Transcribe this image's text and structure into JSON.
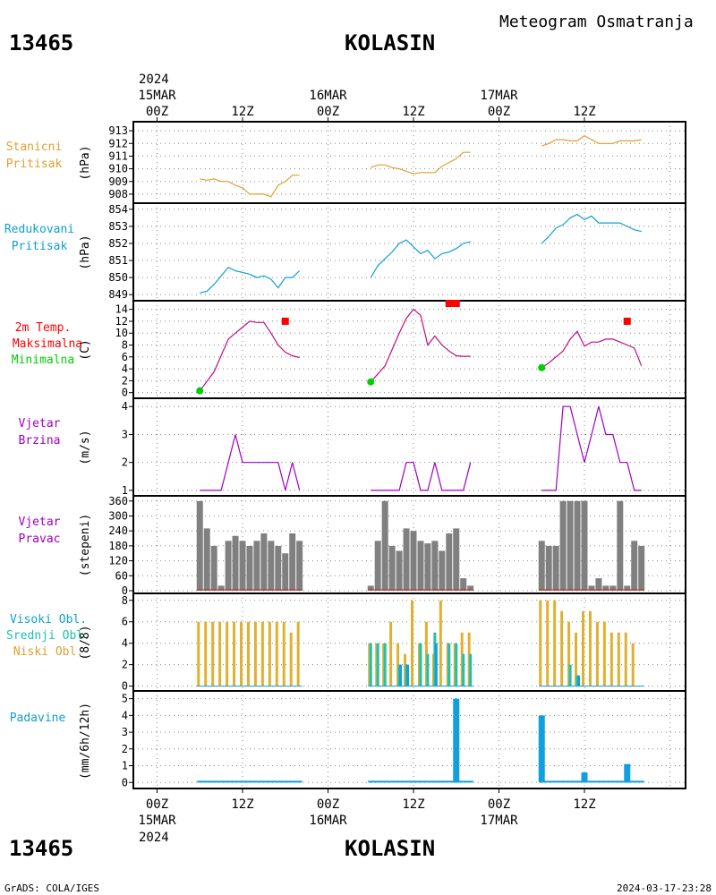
{
  "header": {
    "station_id": "13465",
    "station_name": "KOLASIN",
    "subtitle": "Meteogram Osmatranja",
    "footer_left": "GrADS: COLA/IGES",
    "footer_right": "2024-03-17-23:28"
  },
  "time_axis": {
    "top_year": "2024",
    "bottom_year": "2024",
    "dates": [
      "15MAR",
      "16MAR",
      "17MAR"
    ],
    "hour_ticks": [
      "00Z",
      "12Z",
      "00Z",
      "12Z",
      "00Z",
      "12Z"
    ]
  },
  "colors": {
    "pressure": "#e0a030",
    "reduced_pressure": "#10a0d0",
    "temperature": "#c0107a",
    "max_temp": "#ff0000",
    "min_temp": "#00d000",
    "wind": "#a000c0",
    "wind_dir": "#808080",
    "cloud_low": "#e0b030",
    "cloud_mid": "#20c0b0",
    "cloud_high": "#10a0e0",
    "precip": "#10a0e0"
  },
  "panels": {
    "p1": {
      "label1": "Stanicni",
      "label2": "Pritisak",
      "unit": "(hPa)"
    },
    "p2": {
      "label1": "Redukovani",
      "label2": "Pritisak",
      "unit": "(hPa)"
    },
    "p3": {
      "label1": "2m Temp.",
      "label2": "Maksimalna",
      "label3": "Minimalna",
      "unit": "(C)"
    },
    "p4": {
      "label1": "Vjetar",
      "label2": "Brzina",
      "unit": "(m/s)"
    },
    "p5": {
      "label1": "Vjetar",
      "label2": "Pravac",
      "unit": "(stepeni)"
    },
    "p6": {
      "label1": "Visoki Obl.",
      "label2": "Srednji Obl.",
      "label3": "Niski Obl.",
      "unit": "(8/8)"
    },
    "p7": {
      "label1": "Padavine",
      "unit": "(mm/6h/12h)"
    }
  },
  "chart_data": [
    {
      "type": "line",
      "name": "station_pressure",
      "ylabel": "(hPa)",
      "ylim": [
        907.5,
        913.5
      ],
      "yticks": [
        908,
        909,
        910,
        911,
        912,
        913
      ],
      "x_unit": "hours since 15MAR 00Z",
      "segments": [
        {
          "x": [
            6,
            7,
            8,
            9,
            10,
            11,
            12,
            13,
            14,
            15,
            16,
            17,
            18,
            19,
            20
          ],
          "y": [
            909.2,
            909.1,
            909.2,
            909.0,
            909.0,
            908.7,
            908.5,
            908.0,
            908.0,
            908.0,
            907.8,
            908.7,
            909.0,
            909.5,
            909.5
          ]
        },
        {
          "x": [
            30,
            31,
            32,
            33,
            34,
            35,
            36,
            37,
            38,
            39,
            40,
            41,
            42,
            43,
            44
          ],
          "y": [
            910.1,
            910.3,
            910.3,
            910.1,
            910.0,
            909.8,
            909.6,
            909.7,
            909.7,
            909.7,
            910.2,
            910.5,
            910.8,
            911.3,
            911.3
          ]
        },
        {
          "x": [
            54,
            55,
            56,
            57,
            58,
            59,
            60,
            61,
            62,
            63,
            64,
            65,
            66,
            67,
            68
          ],
          "y": [
            911.8,
            912.0,
            912.3,
            912.3,
            912.2,
            912.2,
            912.6,
            912.3,
            912.0,
            912.0,
            912.0,
            912.2,
            912.2,
            912.2,
            912.3
          ]
        }
      ]
    },
    {
      "type": "line",
      "name": "reduced_pressure",
      "ylabel": "(hPa)",
      "ylim": [
        848.8,
        854.2
      ],
      "yticks": [
        849,
        850,
        851,
        852,
        853,
        854
      ],
      "segments": [
        {
          "x": [
            6,
            7,
            8,
            9,
            10,
            11,
            12,
            13,
            14,
            15,
            16,
            17,
            18,
            19,
            20
          ],
          "y": [
            849.1,
            849.2,
            849.6,
            850.1,
            850.6,
            850.4,
            850.3,
            850.2,
            850.0,
            850.1,
            849.9,
            849.4,
            850.0,
            850.0,
            850.4
          ]
        },
        {
          "x": [
            30,
            31,
            32,
            33,
            34,
            35,
            36,
            37,
            38,
            39,
            40,
            41,
            42,
            43,
            44
          ],
          "y": [
            850.0,
            850.7,
            851.1,
            851.5,
            852.0,
            852.2,
            851.8,
            851.4,
            851.6,
            851.1,
            851.4,
            851.5,
            851.7,
            852.0,
            852.1
          ]
        },
        {
          "x": [
            54,
            55,
            56,
            57,
            58,
            59,
            60,
            61,
            62,
            63,
            64,
            65,
            66,
            67,
            68
          ],
          "y": [
            852.0,
            852.4,
            852.9,
            853.1,
            853.5,
            853.7,
            853.4,
            853.6,
            853.2,
            853.2,
            853.2,
            853.2,
            853.0,
            852.8,
            852.7
          ]
        }
      ]
    },
    {
      "type": "line",
      "name": "temperature_2m",
      "ylabel": "(C)",
      "ylim": [
        -0.5,
        15
      ],
      "yticks": [
        0,
        2,
        4,
        6,
        8,
        10,
        12,
        14
      ],
      "segments": [
        {
          "x": [
            6,
            8,
            10,
            11,
            12,
            13,
            14,
            15,
            16,
            17,
            18,
            19,
            20
          ],
          "y": [
            0.3,
            3.5,
            9.0,
            10.0,
            11.0,
            12.0,
            11.8,
            11.8,
            10.0,
            8.0,
            6.8,
            6.2,
            5.9
          ]
        },
        {
          "x": [
            30,
            32,
            34,
            35,
            36,
            37,
            38,
            39,
            40,
            41,
            42,
            43,
            44
          ],
          "y": [
            1.8,
            4.5,
            10.0,
            12.5,
            14.0,
            13.0,
            8.0,
            9.5,
            8.0,
            7.0,
            6.2,
            6.1,
            6.1
          ]
        },
        {
          "x": [
            54,
            55,
            56,
            57,
            58,
            59,
            60,
            61,
            62,
            63,
            64,
            65,
            66,
            67,
            68
          ],
          "y": [
            4.2,
            5.0,
            6.0,
            7.0,
            9.0,
            10.3,
            7.8,
            8.5,
            8.5,
            9.0,
            9.0,
            8.5,
            8.0,
            7.5,
            4.5
          ]
        }
      ],
      "max_points": [
        {
          "x": 18,
          "y": 12.0
        },
        {
          "x": 41.5,
          "y": 15.0
        },
        {
          "x": 66,
          "y": 12.0
        }
      ],
      "min_points": [
        {
          "x": 6,
          "y": 0.3
        },
        {
          "x": 30,
          "y": 1.8
        },
        {
          "x": 54,
          "y": 4.2
        }
      ]
    },
    {
      "type": "line",
      "name": "wind_speed",
      "ylabel": "(m/s)",
      "ylim": [
        0.9,
        4.2
      ],
      "yticks": [
        1,
        2,
        3,
        4
      ],
      "segments": [
        {
          "x": [
            6,
            7,
            8,
            9,
            10,
            11,
            12,
            13,
            14,
            15,
            16,
            17,
            18,
            19,
            20
          ],
          "y": [
            1,
            1,
            1,
            1,
            2,
            3,
            2,
            2,
            2,
            2,
            2,
            2,
            1,
            2,
            1
          ]
        },
        {
          "x": [
            30,
            31,
            32,
            33,
            34,
            35,
            36,
            37,
            38,
            39,
            40,
            41,
            42,
            43,
            44
          ],
          "y": [
            1,
            1,
            1,
            1,
            1,
            2,
            2,
            1,
            1,
            2,
            1,
            1,
            1,
            1,
            2
          ]
        },
        {
          "x": [
            54,
            55,
            56,
            57,
            58,
            59,
            60,
            61,
            62,
            63,
            64,
            65,
            66,
            67,
            68
          ],
          "y": [
            1,
            1,
            1,
            4,
            4,
            3,
            2,
            3,
            4,
            3,
            3,
            2,
            2,
            1,
            1
          ]
        }
      ]
    },
    {
      "type": "bar",
      "name": "wind_direction",
      "ylabel": "(stepeni)",
      "ylim": [
        0,
        370
      ],
      "yticks": [
        0,
        60,
        120,
        180,
        240,
        300,
        360
      ],
      "x": [
        6,
        7,
        8,
        9,
        10,
        11,
        12,
        13,
        14,
        15,
        16,
        17,
        18,
        19,
        20,
        30,
        31,
        32,
        33,
        34,
        35,
        36,
        37,
        38,
        39,
        40,
        41,
        42,
        43,
        44,
        54,
        55,
        56,
        57,
        58,
        59,
        60,
        61,
        62,
        63,
        64,
        65,
        66,
        67,
        68
      ],
      "values": [
        360,
        250,
        180,
        20,
        200,
        220,
        200,
        180,
        200,
        230,
        200,
        180,
        150,
        230,
        200,
        20,
        200,
        360,
        180,
        160,
        250,
        240,
        200,
        190,
        200,
        160,
        230,
        250,
        50,
        20,
        200,
        180,
        180,
        360,
        360,
        360,
        360,
        20,
        50,
        20,
        20,
        360,
        20,
        200,
        180
      ]
    },
    {
      "type": "bar",
      "name": "cloud_cover",
      "ylabel": "(8/8)",
      "ylim": [
        -0.2,
        8.4
      ],
      "yticks": [
        0,
        2,
        4,
        6,
        8
      ],
      "x": [
        6,
        7,
        8,
        9,
        10,
        11,
        12,
        13,
        14,
        15,
        16,
        17,
        18,
        19,
        20,
        30,
        31,
        32,
        33,
        34,
        35,
        36,
        37,
        38,
        39,
        40,
        41,
        42,
        43,
        44,
        54,
        55,
        56,
        57,
        58,
        59,
        60,
        61,
        62,
        63,
        64,
        65,
        66,
        67,
        68
      ],
      "series": [
        {
          "name": "Niski Obl.",
          "values": [
            6,
            6,
            6,
            6,
            6,
            6,
            6,
            6,
            6,
            6,
            6,
            6,
            6,
            5,
            6,
            4,
            4,
            4,
            6,
            4,
            3,
            8,
            4,
            6,
            3,
            8,
            4,
            4,
            5,
            5,
            8,
            8,
            8,
            7,
            6,
            5,
            7,
            7,
            6,
            6,
            5,
            5,
            5,
            4,
            0
          ]
        },
        {
          "name": "Srednji Obl.",
          "values": [
            0,
            0,
            0,
            0,
            0,
            0,
            0,
            0,
            0,
            0,
            0,
            0,
            0,
            0,
            0,
            4,
            4,
            4,
            0,
            2,
            2,
            0,
            4,
            3,
            5,
            0,
            4,
            4,
            3,
            3,
            0,
            0,
            0,
            0,
            2,
            1,
            0,
            0,
            0,
            0,
            0,
            0,
            0,
            0,
            0
          ]
        },
        {
          "name": "Visoki Obl.",
          "values": [
            0,
            0,
            0,
            0,
            0,
            0,
            0,
            0,
            0,
            0,
            0,
            0,
            0,
            0,
            0,
            0,
            0,
            0,
            0,
            2,
            2,
            0,
            0,
            0,
            4,
            0,
            0,
            0,
            0,
            0,
            0,
            0,
            0,
            0,
            0,
            1,
            0,
            0,
            0,
            0,
            0,
            0,
            0,
            0,
            0
          ]
        }
      ]
    },
    {
      "type": "bar",
      "name": "precipitation",
      "ylabel": "(mm/6h/12h)",
      "ylim": [
        -0.2,
        5.3
      ],
      "yticks": [
        0,
        1,
        2,
        3,
        4,
        5
      ],
      "x": [
        42,
        54,
        60,
        66
      ],
      "values": [
        5.0,
        4.0,
        0.6,
        1.1
      ],
      "trace_segments": [
        [
          6,
          20
        ],
        [
          30,
          44
        ],
        [
          54,
          68
        ]
      ]
    }
  ]
}
